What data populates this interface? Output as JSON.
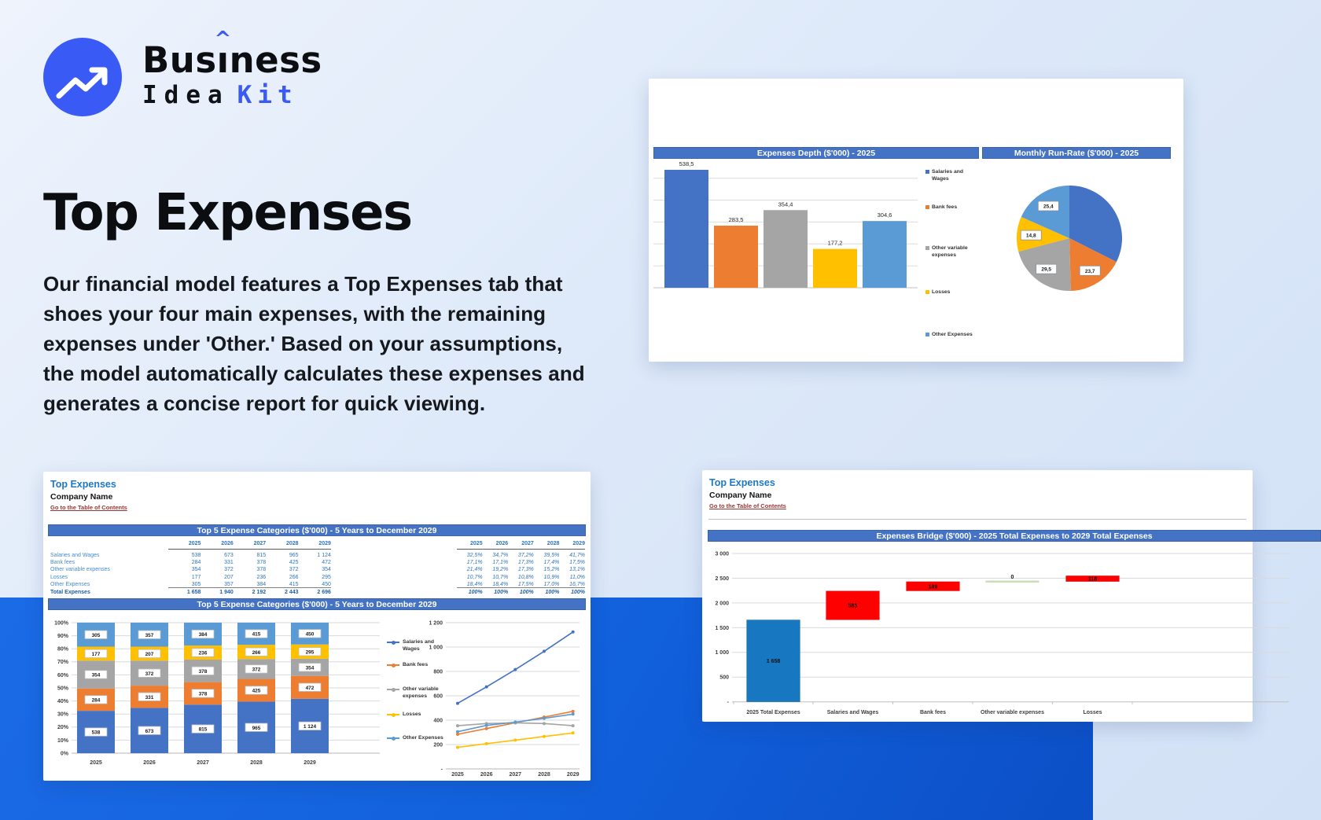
{
  "logo": {
    "brand_pre": "Bus",
    "brand_i": "ı",
    "brand_post": "ness",
    "caret": "^",
    "word_idea": "Idea",
    "word_kit": "Kit",
    "accent_color": "#3a5af5"
  },
  "hero": {
    "title": "Top Expenses",
    "description": "Our financial model features a Top Expenses tab that shoes your four main expenses, with the remaining expenses under 'Other.' Based on your assumptions, the model automatically calculates these expenses and generates a concise report for quick viewing."
  },
  "palette": {
    "excel_blue": "#4472C4",
    "excel_orange": "#ED7D31",
    "excel_gray": "#A5A5A5",
    "excel_yellow": "#FFC000",
    "excel_lightblue": "#5B9BD5",
    "header_bar": "#4472C4"
  },
  "depth_card": {
    "bar_header": "Expenses Depth ($'000) - 2025",
    "pie_header": "Monthly Run-Rate ($'000) - 2025",
    "chart_data": {
      "type": "bar",
      "title": "Expenses Depth ($'000) - 2025",
      "categories": [
        "Salaries and Wages",
        "Bank fees",
        "Other variable expenses",
        "Losses",
        "Other Expenses"
      ],
      "values": [
        538.5,
        283.5,
        354.4,
        177.2,
        304.6
      ],
      "labels": [
        "538,5",
        "283,5",
        "354,4",
        "177,2",
        "304,6"
      ],
      "colors": [
        "#4472C4",
        "#ED7D31",
        "#A5A5A5",
        "#FFC000",
        "#5B9BD5"
      ],
      "legend": [
        [
          "Salaries and",
          "Wages"
        ],
        [
          "Bank fees"
        ],
        [
          "Other variable",
          "expenses"
        ],
        [
          "Losses"
        ],
        [
          "Other Expenses"
        ]
      ],
      "y_gridline_step": 100,
      "y_gridline_max": 500
    },
    "pie_data": {
      "type": "pie",
      "title": "Monthly Run-Rate ($'000) - 2025",
      "categories": [
        "Salaries and Wages",
        "Bank fees",
        "Other variable expenses",
        "Losses",
        "Other Expenses"
      ],
      "values": [
        44.8,
        23.7,
        29.5,
        14.8,
        25.4
      ],
      "labels": [
        "",
        "23,7",
        "29,5",
        "14,8",
        "25,4"
      ],
      "colors": [
        "#4472C4",
        "#ED7D31",
        "#A5A5A5",
        "#FFC000",
        "#5B9BD5"
      ]
    }
  },
  "top5_card": {
    "sheet_title": "Top Expenses",
    "company": "Company Name",
    "toc_link": "Go to the Table of Contents",
    "table_header": "Top 5 Expense Categories ($'000) - 5 Years to December 2029",
    "chart_header": "Top 5 Expense Categories ($'000) - 5 Years to December 2029",
    "table": {
      "years": [
        "2025",
        "2026",
        "2027",
        "2028",
        "2029"
      ],
      "rows": [
        {
          "label": "Salaries and Wages",
          "values": [
            "538",
            "673",
            "815",
            "965",
            "1 124"
          ],
          "pcts": [
            "32,5%",
            "34,7%",
            "37,2%",
            "39,5%",
            "41,7%"
          ]
        },
        {
          "label": "Bank fees",
          "values": [
            "284",
            "331",
            "378",
            "425",
            "472"
          ],
          "pcts": [
            "17,1%",
            "17,1%",
            "17,3%",
            "17,4%",
            "17,5%"
          ]
        },
        {
          "label": "Other variable expenses",
          "values": [
            "354",
            "372",
            "378",
            "372",
            "354"
          ],
          "pcts": [
            "21,4%",
            "19,2%",
            "17,3%",
            "15,2%",
            "13,1%"
          ]
        },
        {
          "label": "Losses",
          "values": [
            "177",
            "207",
            "236",
            "266",
            "295"
          ],
          "pcts": [
            "10,7%",
            "10,7%",
            "10,8%",
            "10,9%",
            "11,0%"
          ]
        },
        {
          "label": "Other Expenses",
          "values": [
            "305",
            "357",
            "384",
            "415",
            "450"
          ],
          "pcts": [
            "18,4%",
            "18,4%",
            "17,5%",
            "17,0%",
            "16,7%"
          ]
        }
      ],
      "total": {
        "label": "Total Expenses",
        "values": [
          "1 658",
          "1 940",
          "2 192",
          "2 443",
          "2 696"
        ],
        "pcts": [
          "100%",
          "100%",
          "100%",
          "100%",
          "100%"
        ]
      }
    },
    "chart_data": {
      "type": "bar",
      "subtype": "stacked-100-plus-line",
      "categories": [
        "2025",
        "2026",
        "2027",
        "2028",
        "2029"
      ],
      "series": [
        {
          "name": [
            "Salaries and",
            "Wages"
          ],
          "color": "#4472C4",
          "values": [
            538,
            673,
            815,
            965,
            1124
          ],
          "labels": [
            "538",
            "673",
            "815",
            "965",
            "1 124"
          ]
        },
        {
          "name": [
            "Bank fees"
          ],
          "color": "#ED7D31",
          "values": [
            284,
            331,
            378,
            425,
            472
          ],
          "labels": [
            "284",
            "331",
            "378",
            "425",
            "472"
          ]
        },
        {
          "name": [
            "Other variable",
            "expenses"
          ],
          "color": "#A5A5A5",
          "values": [
            354,
            372,
            378,
            372,
            354
          ],
          "labels": [
            "354",
            "372",
            "378",
            "372",
            "354"
          ]
        },
        {
          "name": [
            "Losses"
          ],
          "color": "#FFC000",
          "values": [
            177,
            207,
            236,
            266,
            295
          ],
          "labels": [
            "177",
            "207",
            "236",
            "266",
            "295"
          ]
        },
        {
          "name": [
            "Other Expenses"
          ],
          "color": "#5B9BD5",
          "values": [
            305,
            357,
            384,
            415,
            450
          ],
          "labels": [
            "305",
            "357",
            "384",
            "415",
            "450"
          ]
        }
      ],
      "stacked_yticks": [
        "0%",
        "10%",
        "20%",
        "30%",
        "40%",
        "50%",
        "60%",
        "70%",
        "80%",
        "90%",
        "100%"
      ],
      "line_yticks": [
        "-",
        "200",
        "400",
        "600",
        "800",
        "1 000",
        "1 200"
      ],
      "line_ymax": 1200
    }
  },
  "bridge_card": {
    "sheet_title": "Top Expenses",
    "company": "Company Name",
    "toc_link": "Go to the Table of Contents",
    "header": "Expenses Bridge ($'000) - 2025 Total Expenses to 2029 Total Expenses",
    "chart_data": {
      "type": "bar",
      "subtype": "waterfall",
      "categories": [
        "2025 Total Expenses",
        "Salaries and Wages",
        "Bank fees",
        "Other variable expenses",
        "Losses"
      ],
      "yticks": [
        "-",
        "500",
        "1 000",
        "1 500",
        "2 000",
        "2 500",
        "3 000"
      ],
      "ymax": 3000,
      "base_color": "#1777C0",
      "increase_color": "#FF0000",
      "zero_color": "#C6E0B4",
      "bars": [
        {
          "category": "2025 Total Expenses",
          "start": 0,
          "end": 1658,
          "style": "base",
          "label": "1 658"
        },
        {
          "category": "Salaries and Wages",
          "start": 1658,
          "end": 2243,
          "style": "increase",
          "label": "585"
        },
        {
          "category": "Bank fees",
          "start": 2243,
          "end": 2432,
          "style": "increase",
          "label": "189"
        },
        {
          "category": "Other variable expenses",
          "start": 2432,
          "end": 2432,
          "style": "zero",
          "label": "0"
        },
        {
          "category": "Losses",
          "start": 2432,
          "end": 2550,
          "style": "increase",
          "label": "118"
        }
      ]
    }
  }
}
